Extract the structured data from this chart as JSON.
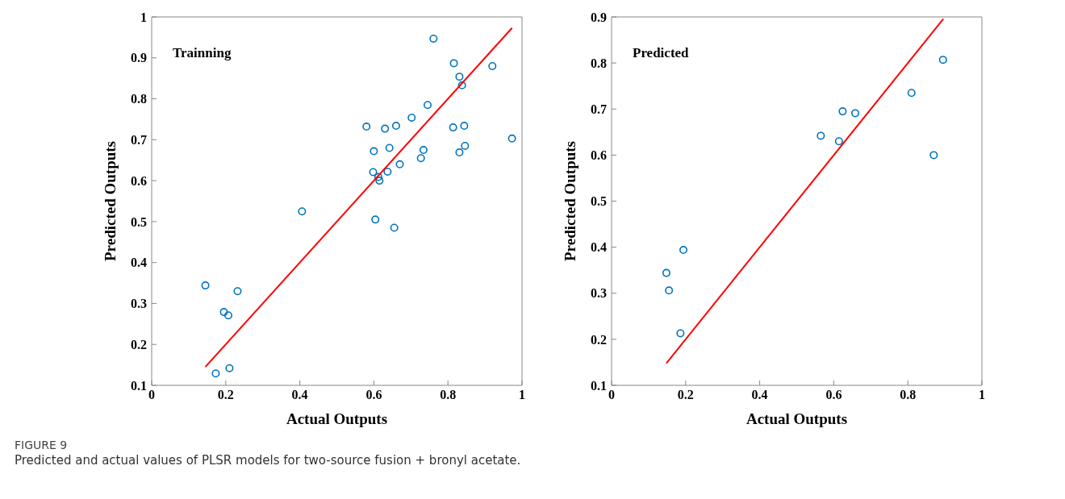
{
  "chart_data": [
    {
      "type": "scatter",
      "title": "Trainning",
      "xlabel": "Actual Outputs",
      "ylabel": "Predicted Outputs",
      "xlim": [
        0,
        1
      ],
      "xticks": [
        0,
        0.2,
        0.4,
        0.6,
        0.8,
        1
      ],
      "ylim": [
        0.1,
        1
      ],
      "yticks": [
        0.1,
        0.2,
        0.3,
        0.4,
        0.5,
        0.6,
        0.7,
        0.8,
        0.9,
        1
      ],
      "annotations": [
        "FIGURE 9",
        "Predicted and actual values of PLSR models for two-source fusion + bronyl acetate."
      ],
      "series": [
        {
          "marker": "circle",
          "color": "#0072bd",
          "x": [
            0.761,
            0.816,
            0.92,
            0.831,
            0.838,
            0.745,
            0.702,
            0.58,
            0.63,
            0.66,
            0.814,
            0.844,
            0.973,
            0.6,
            0.642,
            0.734,
            0.831,
            0.846,
            0.727,
            0.67,
            0.598,
            0.637,
            0.612,
            0.615,
            0.406,
            0.604,
            0.655,
            0.145,
            0.232,
            0.195,
            0.207,
            0.21,
            0.173
          ],
          "values": [
            0.947,
            0.887,
            0.88,
            0.854,
            0.833,
            0.785,
            0.754,
            0.732,
            0.727,
            0.734,
            0.73,
            0.734,
            0.703,
            0.672,
            0.68,
            0.675,
            0.669,
            0.685,
            0.655,
            0.64,
            0.621,
            0.622,
            0.609,
            0.6,
            0.525,
            0.505,
            0.485,
            0.344,
            0.33,
            0.279,
            0.271,
            0.142,
            0.129
          ]
        },
        {
          "type": "line",
          "marker": "none",
          "color": "#ff0000",
          "x": [
            0.145,
            0.973
          ],
          "values": [
            0.145,
            0.973
          ]
        }
      ]
    },
    {
      "type": "scatter",
      "title": "Predicted",
      "xlabel": "Actual Outputs",
      "ylabel": "Predicted Outputs",
      "xlim": [
        0,
        1
      ],
      "xticks": [
        0,
        0.2,
        0.4,
        0.6,
        0.8,
        1
      ],
      "ylim": [
        0.1,
        0.9
      ],
      "yticks": [
        0.1,
        0.2,
        0.3,
        0.4,
        0.5,
        0.6,
        0.7,
        0.8,
        0.9
      ],
      "series": [
        {
          "marker": "circle",
          "color": "#0072bd",
          "x": [
            0.895,
            0.81,
            0.624,
            0.658,
            0.565,
            0.614,
            0.87,
            0.194,
            0.148,
            0.155,
            0.186
          ],
          "values": [
            0.807,
            0.735,
            0.695,
            0.691,
            0.642,
            0.63,
            0.6,
            0.394,
            0.344,
            0.306,
            0.213
          ]
        },
        {
          "type": "line",
          "marker": "none",
          "color": "#ff0000",
          "x": [
            0.148,
            0.896
          ],
          "values": [
            0.148,
            0.896
          ]
        }
      ]
    }
  ]
}
